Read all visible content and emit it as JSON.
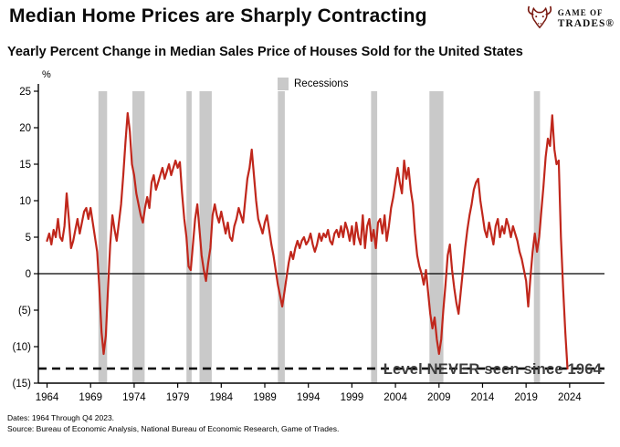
{
  "header": {
    "title": "Median Home Prices are Sharply Contracting",
    "subtitle": "Yearly Percent Change in Median Sales Price of Houses Sold for the United States",
    "logo": {
      "line1": "GAME OF",
      "line2": "TRADES®"
    }
  },
  "legend": {
    "label": "Recessions"
  },
  "axis": {
    "y_unit": "%"
  },
  "annotation": "Level NEVER seen since 1964",
  "footer": {
    "line1": "Dates: 1964 Through Q4 2023.",
    "line2": "Source: Bureau of Economic Analysis, National Bureau of Economic Research, Game of Trades."
  },
  "colors": {
    "line": "#C0271C",
    "recession": "#C9C9C9",
    "axis": "#000000",
    "logo": "#7A1B12",
    "annotation": "#3d3d3d"
  },
  "chart_data": {
    "type": "line",
    "title": "Yearly Percent Change in Median Sales Price of Houses Sold for the United States",
    "xlabel": "",
    "ylabel": "%",
    "ylim": [
      -15,
      25
    ],
    "x_range": [
      1963,
      2028
    ],
    "yticks": [
      25,
      20,
      15,
      10,
      5,
      0,
      -5,
      -10,
      -15
    ],
    "xticks": [
      1964,
      1969,
      1974,
      1979,
      1984,
      1989,
      1994,
      1999,
      2004,
      2009,
      2014,
      2019,
      2024
    ],
    "negative_tick_format": "parentheses",
    "grid": false,
    "legend_position": "top-center",
    "dashed_level": -13,
    "dashed_label": "Level NEVER seen since 1964",
    "recessions": [
      [
        1969.9,
        1970.9
      ],
      [
        1973.8,
        1975.2
      ],
      [
        1980.0,
        1980.6
      ],
      [
        1981.5,
        1982.9
      ],
      [
        1990.5,
        1991.3
      ],
      [
        2001.2,
        2001.9
      ],
      [
        2007.9,
        2009.5
      ],
      [
        2019.9,
        2020.6
      ]
    ],
    "series": [
      {
        "name": "Yearly % change in median sales price",
        "points": [
          [
            1964.0,
            4.5
          ],
          [
            1964.25,
            5.5
          ],
          [
            1964.5,
            4.0
          ],
          [
            1964.75,
            6.0
          ],
          [
            1965.0,
            5.0
          ],
          [
            1965.25,
            7.5
          ],
          [
            1965.5,
            5.0
          ],
          [
            1965.75,
            4.5
          ],
          [
            1966.0,
            6.5
          ],
          [
            1966.25,
            11.0
          ],
          [
            1966.5,
            7.5
          ],
          [
            1966.75,
            3.5
          ],
          [
            1967.0,
            4.5
          ],
          [
            1967.25,
            6.0
          ],
          [
            1967.5,
            7.5
          ],
          [
            1967.75,
            5.5
          ],
          [
            1968.0,
            7.0
          ],
          [
            1968.25,
            8.5
          ],
          [
            1968.5,
            9.0
          ],
          [
            1968.75,
            7.5
          ],
          [
            1969.0,
            9.0
          ],
          [
            1969.25,
            7.0
          ],
          [
            1969.5,
            5.0
          ],
          [
            1969.75,
            3.0
          ],
          [
            1970.0,
            -2.0
          ],
          [
            1970.25,
            -8.0
          ],
          [
            1970.5,
            -11.0
          ],
          [
            1970.75,
            -8.5
          ],
          [
            1971.0,
            -2.0
          ],
          [
            1971.25,
            4.0
          ],
          [
            1971.5,
            8.0
          ],
          [
            1971.75,
            6.0
          ],
          [
            1972.0,
            4.5
          ],
          [
            1972.25,
            7.0
          ],
          [
            1972.5,
            9.5
          ],
          [
            1972.75,
            13.5
          ],
          [
            1973.0,
            18.0
          ],
          [
            1973.25,
            22.0
          ],
          [
            1973.5,
            19.5
          ],
          [
            1973.75,
            15.0
          ],
          [
            1974.0,
            13.5
          ],
          [
            1974.25,
            11.0
          ],
          [
            1974.5,
            9.5
          ],
          [
            1974.75,
            8.0
          ],
          [
            1975.0,
            7.0
          ],
          [
            1975.25,
            9.0
          ],
          [
            1975.5,
            10.5
          ],
          [
            1975.75,
            9.0
          ],
          [
            1976.0,
            12.5
          ],
          [
            1976.25,
            13.5
          ],
          [
            1976.5,
            11.5
          ],
          [
            1976.75,
            12.5
          ],
          [
            1977.0,
            13.5
          ],
          [
            1977.25,
            14.5
          ],
          [
            1977.5,
            13.0
          ],
          [
            1977.75,
            14.0
          ],
          [
            1978.0,
            15.0
          ],
          [
            1978.25,
            13.5
          ],
          [
            1978.5,
            14.5
          ],
          [
            1978.75,
            15.5
          ],
          [
            1979.0,
            14.5
          ],
          [
            1979.25,
            15.3
          ],
          [
            1979.5,
            11.0
          ],
          [
            1979.75,
            7.5
          ],
          [
            1980.0,
            5.0
          ],
          [
            1980.25,
            1.0
          ],
          [
            1980.5,
            0.5
          ],
          [
            1980.75,
            4.0
          ],
          [
            1981.0,
            7.5
          ],
          [
            1981.25,
            9.5
          ],
          [
            1981.5,
            6.0
          ],
          [
            1981.75,
            2.5
          ],
          [
            1982.0,
            0.5
          ],
          [
            1982.25,
            -1.0
          ],
          [
            1982.5,
            1.5
          ],
          [
            1982.75,
            3.5
          ],
          [
            1983.0,
            8.0
          ],
          [
            1983.25,
            9.5
          ],
          [
            1983.5,
            8.0
          ],
          [
            1983.75,
            7.0
          ],
          [
            1984.0,
            8.5
          ],
          [
            1984.25,
            7.0
          ],
          [
            1984.5,
            5.5
          ],
          [
            1984.75,
            7.0
          ],
          [
            1985.0,
            5.0
          ],
          [
            1985.25,
            4.5
          ],
          [
            1985.5,
            6.5
          ],
          [
            1985.75,
            7.5
          ],
          [
            1986.0,
            9.0
          ],
          [
            1986.25,
            8.0
          ],
          [
            1986.5,
            7.0
          ],
          [
            1986.75,
            10.0
          ],
          [
            1987.0,
            13.0
          ],
          [
            1987.25,
            14.5
          ],
          [
            1987.5,
            17.0
          ],
          [
            1987.75,
            13.5
          ],
          [
            1988.0,
            10.0
          ],
          [
            1988.25,
            7.5
          ],
          [
            1988.5,
            6.5
          ],
          [
            1988.75,
            5.5
          ],
          [
            1989.0,
            7.0
          ],
          [
            1989.25,
            8.0
          ],
          [
            1989.5,
            6.0
          ],
          [
            1989.75,
            4.0
          ],
          [
            1990.0,
            2.5
          ],
          [
            1990.25,
            0.5
          ],
          [
            1990.5,
            -1.5
          ],
          [
            1990.75,
            -3.0
          ],
          [
            1991.0,
            -4.5
          ],
          [
            1991.25,
            -2.5
          ],
          [
            1991.5,
            -0.5
          ],
          [
            1991.75,
            1.5
          ],
          [
            1992.0,
            3.0
          ],
          [
            1992.25,
            2.0
          ],
          [
            1992.5,
            3.5
          ],
          [
            1992.75,
            4.5
          ],
          [
            1993.0,
            3.5
          ],
          [
            1993.25,
            4.5
          ],
          [
            1993.5,
            5.0
          ],
          [
            1993.75,
            4.0
          ],
          [
            1994.0,
            4.5
          ],
          [
            1994.25,
            5.5
          ],
          [
            1994.5,
            4.0
          ],
          [
            1994.75,
            3.0
          ],
          [
            1995.0,
            4.0
          ],
          [
            1995.25,
            5.5
          ],
          [
            1995.5,
            4.5
          ],
          [
            1995.75,
            5.5
          ],
          [
            1996.0,
            5.0
          ],
          [
            1996.25,
            6.0
          ],
          [
            1996.5,
            4.5
          ],
          [
            1996.75,
            4.0
          ],
          [
            1997.0,
            5.5
          ],
          [
            1997.25,
            6.0
          ],
          [
            1997.5,
            5.0
          ],
          [
            1997.75,
            6.5
          ],
          [
            1998.0,
            5.0
          ],
          [
            1998.25,
            7.0
          ],
          [
            1998.5,
            6.0
          ],
          [
            1998.75,
            4.5
          ],
          [
            1999.0,
            6.5
          ],
          [
            1999.25,
            4.0
          ],
          [
            1999.5,
            7.0
          ],
          [
            1999.75,
            5.0
          ],
          [
            2000.0,
            4.0
          ],
          [
            2000.25,
            8.0
          ],
          [
            2000.5,
            3.5
          ],
          [
            2000.75,
            6.5
          ],
          [
            2001.0,
            7.5
          ],
          [
            2001.25,
            4.5
          ],
          [
            2001.5,
            6.0
          ],
          [
            2001.75,
            3.5
          ],
          [
            2002.0,
            7.0
          ],
          [
            2002.25,
            7.5
          ],
          [
            2002.5,
            5.5
          ],
          [
            2002.75,
            8.0
          ],
          [
            2003.0,
            4.5
          ],
          [
            2003.25,
            6.5
          ],
          [
            2003.5,
            9.0
          ],
          [
            2003.75,
            10.5
          ],
          [
            2004.0,
            12.5
          ],
          [
            2004.25,
            14.5
          ],
          [
            2004.5,
            12.5
          ],
          [
            2004.75,
            11.0
          ],
          [
            2005.0,
            15.5
          ],
          [
            2005.25,
            13.0
          ],
          [
            2005.5,
            14.5
          ],
          [
            2005.75,
            11.5
          ],
          [
            2006.0,
            9.5
          ],
          [
            2006.25,
            5.5
          ],
          [
            2006.5,
            2.5
          ],
          [
            2006.75,
            1.0
          ],
          [
            2007.0,
            0.0
          ],
          [
            2007.25,
            -1.5
          ],
          [
            2007.5,
            0.5
          ],
          [
            2007.75,
            -2.5
          ],
          [
            2008.0,
            -5.5
          ],
          [
            2008.25,
            -7.5
          ],
          [
            2008.5,
            -6.0
          ],
          [
            2008.75,
            -9.0
          ],
          [
            2009.0,
            -11.0
          ],
          [
            2009.25,
            -9.0
          ],
          [
            2009.5,
            -5.0
          ],
          [
            2009.75,
            -1.5
          ],
          [
            2010.0,
            2.5
          ],
          [
            2010.25,
            4.0
          ],
          [
            2010.5,
            0.5
          ],
          [
            2010.75,
            -2.0
          ],
          [
            2011.0,
            -4.0
          ],
          [
            2011.25,
            -5.5
          ],
          [
            2011.5,
            -2.5
          ],
          [
            2011.75,
            0.5
          ],
          [
            2012.0,
            3.5
          ],
          [
            2012.25,
            6.0
          ],
          [
            2012.5,
            8.0
          ],
          [
            2012.75,
            9.5
          ],
          [
            2013.0,
            11.5
          ],
          [
            2013.25,
            12.5
          ],
          [
            2013.5,
            13.0
          ],
          [
            2013.75,
            10.0
          ],
          [
            2014.0,
            8.0
          ],
          [
            2014.25,
            6.0
          ],
          [
            2014.5,
            5.0
          ],
          [
            2014.75,
            7.0
          ],
          [
            2015.0,
            5.5
          ],
          [
            2015.25,
            4.0
          ],
          [
            2015.5,
            6.5
          ],
          [
            2015.75,
            7.5
          ],
          [
            2016.0,
            5.0
          ],
          [
            2016.25,
            6.5
          ],
          [
            2016.5,
            5.5
          ],
          [
            2016.75,
            7.5
          ],
          [
            2017.0,
            6.5
          ],
          [
            2017.25,
            5.0
          ],
          [
            2017.5,
            6.5
          ],
          [
            2017.75,
            5.5
          ],
          [
            2018.0,
            4.5
          ],
          [
            2018.25,
            3.0
          ],
          [
            2018.5,
            2.0
          ],
          [
            2018.75,
            0.5
          ],
          [
            2019.0,
            -1.0
          ],
          [
            2019.25,
            -4.5
          ],
          [
            2019.5,
            -0.5
          ],
          [
            2019.75,
            3.0
          ],
          [
            2020.0,
            5.5
          ],
          [
            2020.25,
            3.0
          ],
          [
            2020.5,
            5.0
          ],
          [
            2020.75,
            8.5
          ],
          [
            2021.0,
            12.0
          ],
          [
            2021.25,
            16.0
          ],
          [
            2021.5,
            18.5
          ],
          [
            2021.75,
            17.5
          ],
          [
            2022.0,
            21.7
          ],
          [
            2022.25,
            17.0
          ],
          [
            2022.5,
            15.0
          ],
          [
            2022.75,
            15.5
          ],
          [
            2023.0,
            5.0
          ],
          [
            2023.25,
            -2.0
          ],
          [
            2023.5,
            -8.0
          ],
          [
            2023.75,
            -13.0
          ]
        ]
      }
    ]
  }
}
